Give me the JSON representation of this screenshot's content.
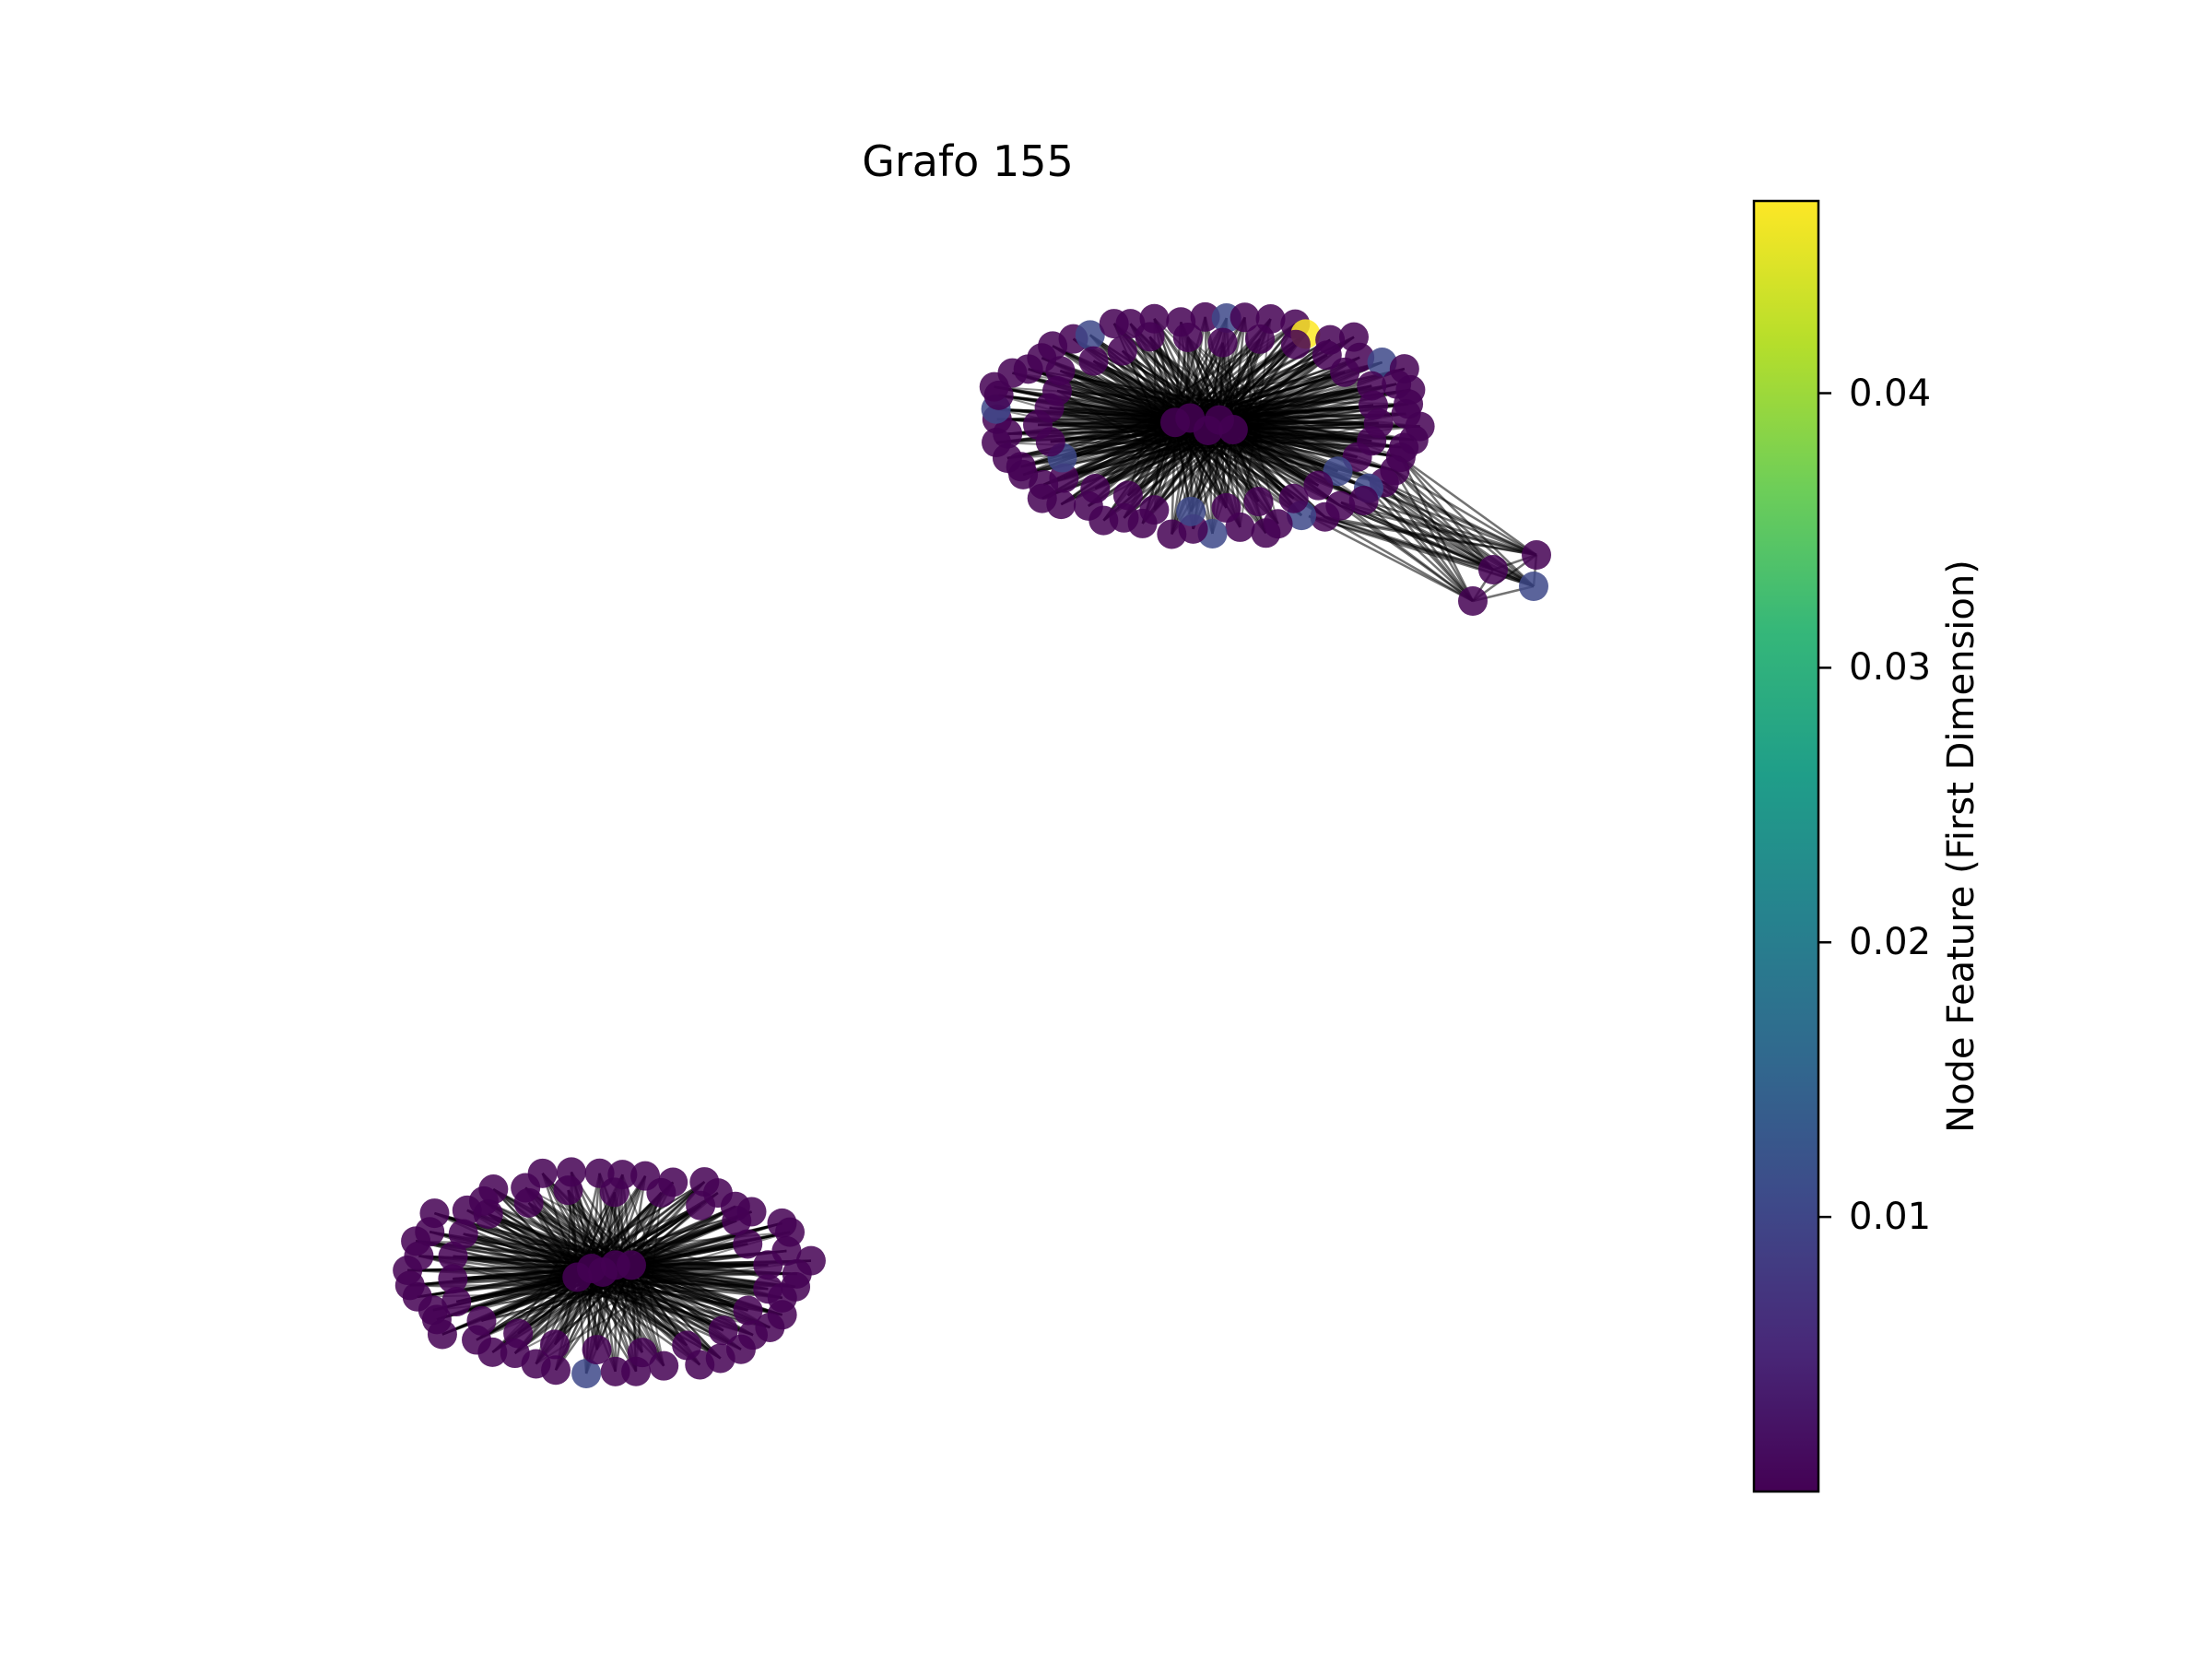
{
  "title": "Grafo 155",
  "colorbar": {
    "label": "Node Feature (First Dimension)",
    "ticks": [
      "0.04",
      "0.03",
      "0.02",
      "0.01"
    ],
    "tick_values": [
      0.04,
      0.03,
      0.02,
      0.01
    ],
    "range": [
      0.0,
      0.047
    ],
    "colormap": "viridis",
    "stops": [
      "#440154",
      "#482878",
      "#3e4989",
      "#31688e",
      "#26828e",
      "#1f9e89",
      "#35b779",
      "#6ece58",
      "#b5de2b",
      "#fde725"
    ]
  },
  "graph": {
    "components": 2,
    "edge_color": "#000000",
    "node_color_default": "#440154",
    "node_color_blue": "#3e4989",
    "node_color_highlight": "#fde725"
  }
}
